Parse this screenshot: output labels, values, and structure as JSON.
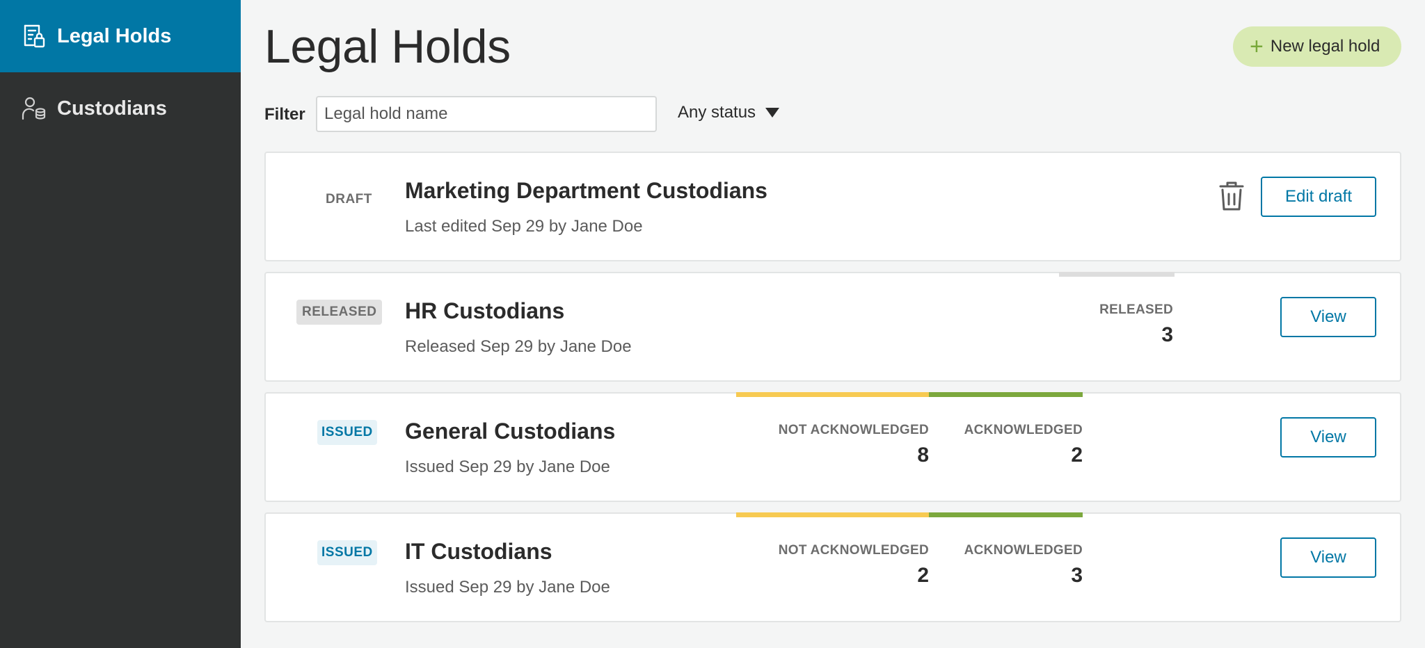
{
  "sidebar": {
    "items": [
      {
        "label": "Legal Holds",
        "icon": "legal-holds-icon",
        "active": true
      },
      {
        "label": "Custodians",
        "icon": "custodians-icon",
        "active": false
      }
    ]
  },
  "header": {
    "title": "Legal Holds",
    "new_button_label": "New legal hold"
  },
  "filter": {
    "label": "Filter",
    "placeholder": "Legal hold name",
    "value": "",
    "status_selected": "Any status"
  },
  "holds": [
    {
      "status": "DRAFT",
      "title": "Marketing Department Custodians",
      "subtitle": "Last edited Sep 29 by Jane Doe",
      "action": "Edit draft"
    },
    {
      "status": "RELEASED",
      "title": "HR Custodians",
      "subtitle": "Released Sep 29 by Jane Doe",
      "stats": [
        {
          "label": "RELEASED",
          "value": "3"
        }
      ],
      "action": "View"
    },
    {
      "status": "ISSUED",
      "title": "General Custodians",
      "subtitle": "Issued Sep 29 by Jane Doe",
      "stats": [
        {
          "label": "NOT ACKNOWLEDGED",
          "value": "8"
        },
        {
          "label": "ACKNOWLEDGED",
          "value": "2"
        }
      ],
      "action": "View"
    },
    {
      "status": "ISSUED",
      "title": "IT Custodians",
      "subtitle": "Issued Sep 29 by Jane Doe",
      "stats": [
        {
          "label": "NOT ACKNOWLEDGED",
          "value": "2"
        },
        {
          "label": "ACKNOWLEDGED",
          "value": "3"
        }
      ],
      "action": "View"
    }
  ],
  "colors": {
    "sidebar_bg": "#2f3131",
    "active_nav": "#0177a5",
    "primary": "#0177a5",
    "new_button_bg": "#d9eab3",
    "not_acknowledged_bar": "#f7ca52",
    "acknowledged_bar": "#7ca83d",
    "released_bar": "#dddddd"
  }
}
